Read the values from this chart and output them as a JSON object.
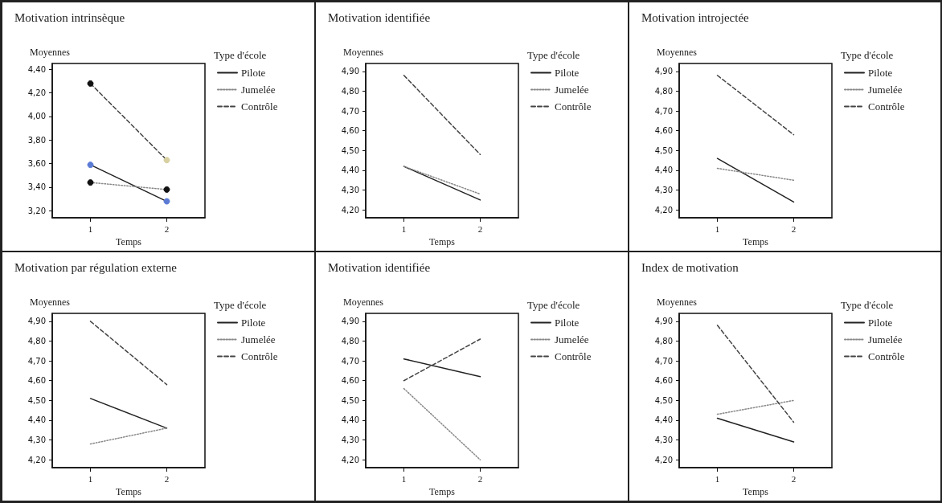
{
  "chart_data": [
    {
      "type": "line",
      "title": "Motivation intrinsèque",
      "ylabel": "Moyennes",
      "xlabel": "Temps",
      "legend_title": "Type d'école",
      "legend": "right",
      "marker": "circle",
      "grid": false,
      "categories": [
        "1",
        "2"
      ],
      "ylim": [
        3.14,
        4.45
      ],
      "yticks": [
        {
          "value": 3.2,
          "label": "3,20"
        },
        {
          "value": 3.4,
          "label": "3,40"
        },
        {
          "value": 3.6,
          "label": "3,60"
        },
        {
          "value": 3.8,
          "label": "3,80"
        },
        {
          "value": 4.0,
          "label": "4,00"
        },
        {
          "value": 4.2,
          "label": "4,20"
        },
        {
          "value": 4.4,
          "label": "4,40"
        }
      ],
      "series": [
        {
          "name": "Pilote",
          "color": "#222222",
          "line_style": "solid",
          "colors": [
            "#5b7bd5",
            "#5b7bd5"
          ],
          "values": [
            3.59,
            3.28
          ]
        },
        {
          "name": "Jumelée",
          "color": "#888888",
          "line_style": "dotted",
          "colors": [
            "#111111",
            "#111111"
          ],
          "values": [
            3.44,
            3.38
          ]
        },
        {
          "name": "Contrôle",
          "color": "#444444",
          "line_style": "dashed",
          "colors": [
            "#111111",
            "#d8d0a0"
          ],
          "values": [
            4.28,
            3.63
          ]
        }
      ]
    },
    {
      "type": "line",
      "title": "Motivation identifiée",
      "ylabel": "Moyennes",
      "xlabel": "Temps",
      "legend_title": "Type d'école",
      "legend": "right",
      "grid": false,
      "categories": [
        "1",
        "2"
      ],
      "ylim": [
        4.16,
        4.94
      ],
      "yticks": [
        {
          "value": 4.2,
          "label": "4,20"
        },
        {
          "value": 4.3,
          "label": "4,30"
        },
        {
          "value": 4.4,
          "label": "4,40"
        },
        {
          "value": 4.5,
          "label": "4,50"
        },
        {
          "value": 4.6,
          "label": "4,60"
        },
        {
          "value": 4.7,
          "label": "4,70"
        },
        {
          "value": 4.8,
          "label": "4,80"
        },
        {
          "value": 4.9,
          "label": "4,90"
        }
      ],
      "series": [
        {
          "name": "Pilote",
          "color": "#222222",
          "line_style": "solid",
          "values": [
            4.42,
            4.25
          ]
        },
        {
          "name": "Jumelée",
          "color": "#888888",
          "line_style": "dotted",
          "values": [
            4.42,
            4.28
          ]
        },
        {
          "name": "Contrôle",
          "color": "#444444",
          "line_style": "dashed",
          "values": [
            4.88,
            4.48
          ]
        }
      ]
    },
    {
      "type": "line",
      "title": "Motivation introjectée",
      "ylabel": "Moyennes",
      "xlabel": "Temps",
      "legend_title": "Type d'école",
      "legend": "right",
      "grid": false,
      "categories": [
        "1",
        "2"
      ],
      "ylim": [
        4.16,
        4.94
      ],
      "yticks": [
        {
          "value": 4.2,
          "label": "4,20"
        },
        {
          "value": 4.3,
          "label": "4,30"
        },
        {
          "value": 4.4,
          "label": "4,40"
        },
        {
          "value": 4.5,
          "label": "4,50"
        },
        {
          "value": 4.6,
          "label": "4,60"
        },
        {
          "value": 4.7,
          "label": "4,70"
        },
        {
          "value": 4.8,
          "label": "4,80"
        },
        {
          "value": 4.9,
          "label": "4,90"
        }
      ],
      "series": [
        {
          "name": "Pilote",
          "color": "#222222",
          "line_style": "solid",
          "values": [
            4.46,
            4.24
          ]
        },
        {
          "name": "Jumelée",
          "color": "#888888",
          "line_style": "dotted",
          "values": [
            4.41,
            4.35
          ]
        },
        {
          "name": "Contrôle",
          "color": "#444444",
          "line_style": "dashed",
          "values": [
            4.88,
            4.58
          ]
        }
      ]
    },
    {
      "type": "line",
      "title": "Motivation par régulation externe",
      "ylabel": "Moyennes",
      "xlabel": "Temps",
      "legend_title": "Type d'école",
      "legend": "right",
      "grid": false,
      "categories": [
        "1",
        "2"
      ],
      "ylim": [
        4.16,
        4.94
      ],
      "yticks": [
        {
          "value": 4.2,
          "label": "4,20"
        },
        {
          "value": 4.3,
          "label": "4,30"
        },
        {
          "value": 4.4,
          "label": "4,40"
        },
        {
          "value": 4.5,
          "label": "4,50"
        },
        {
          "value": 4.6,
          "label": "4,60"
        },
        {
          "value": 4.7,
          "label": "4,70"
        },
        {
          "value": 4.8,
          "label": "4,80"
        },
        {
          "value": 4.9,
          "label": "4,90"
        }
      ],
      "series": [
        {
          "name": "Pilote",
          "color": "#222222",
          "line_style": "solid",
          "values": [
            4.51,
            4.36
          ]
        },
        {
          "name": "Jumelée",
          "color": "#888888",
          "line_style": "dotted",
          "values": [
            4.28,
            4.36
          ]
        },
        {
          "name": "Contrôle",
          "color": "#444444",
          "line_style": "dashed",
          "values": [
            4.9,
            4.58
          ]
        }
      ]
    },
    {
      "type": "line",
      "title": "Motivation identifiée",
      "ylabel": "Moyennes",
      "xlabel": "Temps",
      "legend_title": "Type d'école",
      "legend": "right",
      "grid": false,
      "categories": [
        "1",
        "2"
      ],
      "ylim": [
        4.16,
        4.94
      ],
      "yticks": [
        {
          "value": 4.2,
          "label": "4,20"
        },
        {
          "value": 4.3,
          "label": "4,30"
        },
        {
          "value": 4.4,
          "label": "4,40"
        },
        {
          "value": 4.5,
          "label": "4,50"
        },
        {
          "value": 4.6,
          "label": "4,60"
        },
        {
          "value": 4.7,
          "label": "4,70"
        },
        {
          "value": 4.8,
          "label": "4,80"
        },
        {
          "value": 4.9,
          "label": "4,90"
        }
      ],
      "series": [
        {
          "name": "Pilote",
          "color": "#222222",
          "line_style": "solid",
          "values": [
            4.71,
            4.62
          ]
        },
        {
          "name": "Jumelée",
          "color": "#888888",
          "line_style": "dotted",
          "values": [
            4.56,
            4.2
          ]
        },
        {
          "name": "Contrôle",
          "color": "#444444",
          "line_style": "dashed",
          "values": [
            4.6,
            4.81
          ]
        }
      ]
    },
    {
      "type": "line",
      "title": "Index de motivation",
      "ylabel": "Moyennes",
      "xlabel": "Temps",
      "legend_title": "Type d'école",
      "legend": "right",
      "grid": false,
      "categories": [
        "1",
        "2"
      ],
      "ylim": [
        4.16,
        4.94
      ],
      "yticks": [
        {
          "value": 4.2,
          "label": "4,20"
        },
        {
          "value": 4.3,
          "label": "4,30"
        },
        {
          "value": 4.4,
          "label": "4,40"
        },
        {
          "value": 4.5,
          "label": "4,50"
        },
        {
          "value": 4.6,
          "label": "4,60"
        },
        {
          "value": 4.7,
          "label": "4,70"
        },
        {
          "value": 4.8,
          "label": "4,80"
        },
        {
          "value": 4.9,
          "label": "4,90"
        }
      ],
      "series": [
        {
          "name": "Pilote",
          "color": "#222222",
          "line_style": "solid",
          "values": [
            4.41,
            4.29
          ]
        },
        {
          "name": "Jumelée",
          "color": "#888888",
          "line_style": "dotted",
          "values": [
            4.43,
            4.5
          ]
        },
        {
          "name": "Contrôle",
          "color": "#444444",
          "line_style": "dashed",
          "values": [
            4.88,
            4.39
          ]
        }
      ]
    }
  ]
}
